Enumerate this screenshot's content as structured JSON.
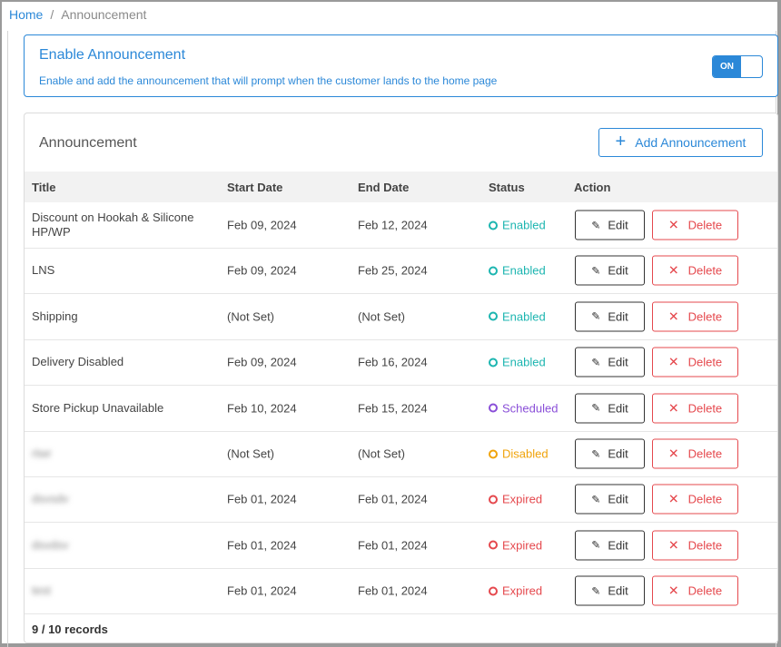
{
  "breadcrumb": {
    "home": "Home",
    "separator": "/",
    "current": "Announcement"
  },
  "enable": {
    "title": "Enable Announcement",
    "description": "Enable and add the announcement that will prompt when the customer lands to the home page",
    "toggle_label": "ON"
  },
  "announcement": {
    "title": "Announcement",
    "add_button": "Add Announcement",
    "columns": {
      "title": "Title",
      "start": "Start Date",
      "end": "End Date",
      "status": "Status",
      "action": "Action"
    },
    "rows": [
      {
        "title": "Discount on Hookah & Silicone HP/WP",
        "start": "Feb 09, 2024",
        "end": "Feb 12, 2024",
        "status": "Enabled"
      },
      {
        "title": "LNS",
        "start": "Feb 09, 2024",
        "end": "Feb 25, 2024",
        "status": "Enabled"
      },
      {
        "title": "Shipping",
        "start": "(Not Set)",
        "end": "(Not Set)",
        "status": "Enabled"
      },
      {
        "title": "Delivery Disabled",
        "start": "Feb 09, 2024",
        "end": "Feb 16, 2024",
        "status": "Enabled"
      },
      {
        "title": "Store Pickup Unavailable",
        "start": "Feb 10, 2024",
        "end": "Feb 15, 2024",
        "status": "Scheduled"
      },
      {
        "title": "rtwr",
        "start": "(Not Set)",
        "end": "(Not Set)",
        "status": "Disabled"
      },
      {
        "title": "dsvsdv",
        "start": "Feb 01, 2024",
        "end": "Feb 01, 2024",
        "status": "Expired"
      },
      {
        "title": "dsvdsv",
        "start": "Feb 01, 2024",
        "end": "Feb 01, 2024",
        "status": "Expired"
      },
      {
        "title": "test",
        "start": "Feb 01, 2024",
        "end": "Feb 01, 2024",
        "status": "Expired"
      }
    ],
    "edit_label": "Edit",
    "delete_label": "Delete",
    "records": "9 / 10 records"
  },
  "colors": {
    "accent": "#2b88d8",
    "enabled": "#1cb5b0",
    "scheduled": "#8a4fd8",
    "disabled": "#f0a30a",
    "expired": "#e5484d"
  },
  "icons": {
    "add": "plus-icon",
    "edit": "pencil-icon",
    "delete": "close-icon",
    "status": "status-ring-icon"
  }
}
